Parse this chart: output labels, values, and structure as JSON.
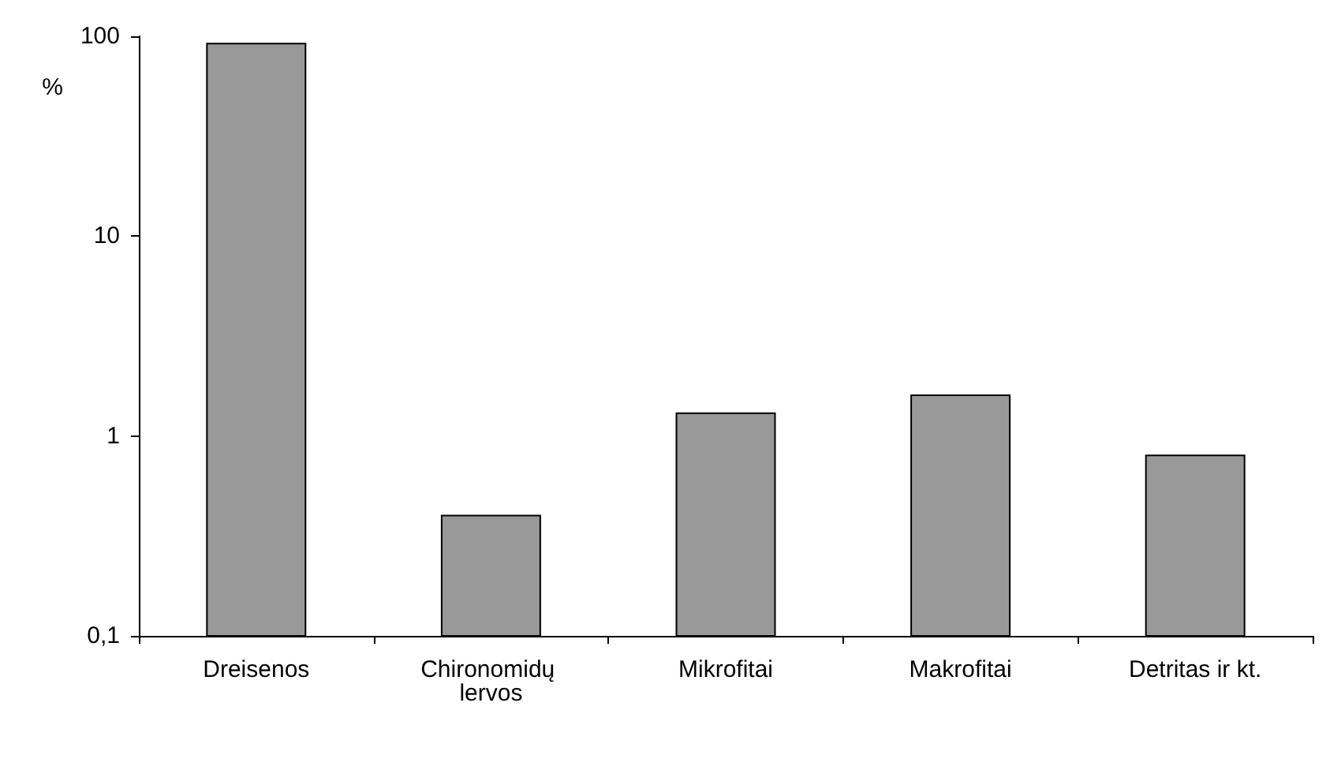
{
  "chart_data": {
    "type": "bar",
    "ylabel": "%",
    "categories": [
      "Dreisenos",
      "Chironomidų lervos",
      "Mikrofitai",
      "Makrofitai",
      "Detritas ir kt."
    ],
    "values": [
      92,
      0.4,
      1.3,
      1.6,
      0.8
    ],
    "color": "#999999",
    "log": "y",
    "ylim": [
      0.1,
      100
    ],
    "yticks": [
      {
        "value": 0.1,
        "label": "0,1"
      },
      1,
      10,
      100
    ],
    "grid": false
  }
}
